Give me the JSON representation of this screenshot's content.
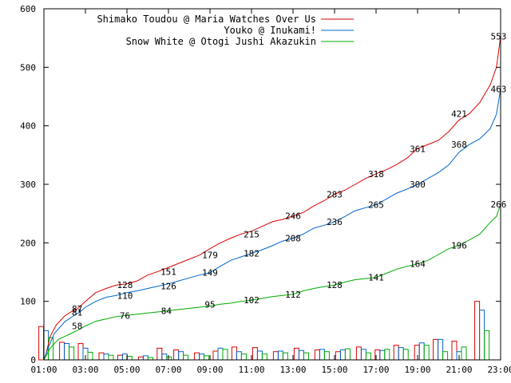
{
  "chart_data": {
    "type": "line",
    "title": "",
    "xlabel": "",
    "ylabel": "",
    "xlim": [
      1,
      23
    ],
    "ylim": [
      0,
      600
    ],
    "grid": false,
    "legend_position": "top-right",
    "x_ticks": [
      "01:00",
      "03:00",
      "05:00",
      "07:00",
      "09:00",
      "11:00",
      "13:00",
      "15:00",
      "17:00",
      "19:00",
      "21:00",
      "23:00"
    ],
    "y_ticks": [
      "0",
      "100",
      "200",
      "300",
      "400",
      "500",
      "600"
    ],
    "series": [
      {
        "name": "Shimako Toudou @ Maria Watches Over Us",
        "color": "#dd0000",
        "x": [
          1.0,
          1.1,
          1.3,
          1.6,
          2.0,
          2.3,
          2.6,
          3.0,
          3.5,
          4.0,
          4.5,
          5.0,
          5.5,
          6.0,
          6.5,
          7.0,
          7.5,
          8.0,
          8.5,
          9.0,
          9.5,
          10.0,
          10.5,
          11.0,
          11.5,
          12.0,
          12.5,
          13.0,
          13.5,
          14.0,
          14.5,
          15.0,
          15.5,
          16.0,
          16.5,
          17.0,
          17.5,
          18.0,
          18.5,
          19.0,
          19.5,
          20.0,
          20.5,
          21.0,
          21.5,
          22.0,
          22.5,
          22.8,
          23.0
        ],
        "y": [
          0,
          10,
          40,
          60,
          75,
          82,
          87,
          100,
          115,
          122,
          128,
          130,
          135,
          145,
          151,
          158,
          165,
          172,
          179,
          190,
          200,
          208,
          215,
          220,
          228,
          236,
          240,
          246,
          252,
          263,
          272,
          283,
          290,
          300,
          310,
          318,
          325,
          334,
          345,
          361,
          368,
          375,
          390,
          410,
          421,
          440,
          470,
          500,
          553
        ],
        "labels": [
          [
            2.6,
            87
          ],
          [
            4.9,
            128
          ],
          [
            7.0,
            151
          ],
          [
            9.0,
            179
          ],
          [
            11.0,
            215
          ],
          [
            13.0,
            246
          ],
          [
            15.0,
            283
          ],
          [
            17.0,
            318
          ],
          [
            19.0,
            361
          ],
          [
            21.0,
            421
          ],
          [
            22.9,
            553
          ]
        ]
      },
      {
        "name": "Youko @ Inukami!",
        "color": "#0066cc",
        "x": [
          1.0,
          1.2,
          1.5,
          2.0,
          2.5,
          2.7,
          3.0,
          3.5,
          4.0,
          4.5,
          5.0,
          5.5,
          6.0,
          6.5,
          7.0,
          7.5,
          8.0,
          8.5,
          9.0,
          9.5,
          10.0,
          10.5,
          11.0,
          11.5,
          12.0,
          12.5,
          13.0,
          13.5,
          14.0,
          14.5,
          15.0,
          15.5,
          16.0,
          16.5,
          17.0,
          17.5,
          18.0,
          18.5,
          19.0,
          19.5,
          20.0,
          20.5,
          21.0,
          21.5,
          22.0,
          22.5,
          22.8,
          23.0
        ],
        "y": [
          0,
          20,
          45,
          65,
          77,
          81,
          90,
          100,
          107,
          110,
          115,
          118,
          122,
          126,
          130,
          135,
          140,
          145,
          149,
          160,
          170,
          176,
          182,
          188,
          195,
          203,
          208,
          215,
          225,
          230,
          236,
          245,
          255,
          260,
          265,
          275,
          285,
          292,
          300,
          310,
          320,
          333,
          355,
          368,
          378,
          395,
          420,
          463
        ],
        "labels": [
          [
            2.6,
            81
          ],
          [
            4.9,
            110
          ],
          [
            7.0,
            126
          ],
          [
            9.0,
            149
          ],
          [
            11.0,
            182
          ],
          [
            13.0,
            208
          ],
          [
            15.0,
            236
          ],
          [
            17.0,
            265
          ],
          [
            19.0,
            300
          ],
          [
            21.0,
            368
          ],
          [
            22.9,
            463
          ]
        ]
      },
      {
        "name": "Snow White @ Otogi Jushi Akazukin",
        "color": "#00aa00",
        "x": [
          1.0,
          1.3,
          1.7,
          2.0,
          2.3,
          2.7,
          3.0,
          3.5,
          4.0,
          4.5,
          5.0,
          5.5,
          6.0,
          6.5,
          7.0,
          7.5,
          8.0,
          8.5,
          9.0,
          9.5,
          10.0,
          10.5,
          11.0,
          11.5,
          12.0,
          12.5,
          13.0,
          13.5,
          14.0,
          14.5,
          15.0,
          15.5,
          16.0,
          16.5,
          17.0,
          17.5,
          18.0,
          18.5,
          19.0,
          19.5,
          20.0,
          20.5,
          21.0,
          21.5,
          22.0,
          22.5,
          22.8,
          23.0
        ],
        "y": [
          0,
          20,
          35,
          40,
          45,
          52,
          58,
          66,
          70,
          74,
          76,
          78,
          80,
          82,
          84,
          86,
          88,
          90,
          92,
          95,
          97,
          100,
          102,
          105,
          108,
          110,
          112,
          118,
          122,
          125,
          128,
          133,
          137,
          139,
          141,
          148,
          155,
          160,
          164,
          170,
          180,
          190,
          196,
          205,
          215,
          235,
          245,
          266
        ],
        "labels": [
          [
            2.6,
            58
          ],
          [
            4.9,
            76
          ],
          [
            6.9,
            84
          ],
          [
            9.0,
            95
          ],
          [
            11.0,
            102
          ],
          [
            13.0,
            112
          ],
          [
            15.0,
            128
          ],
          [
            17.0,
            141
          ],
          [
            19.0,
            164
          ],
          [
            21.0,
            196
          ],
          [
            22.9,
            266
          ]
        ]
      }
    ],
    "bars": [
      {
        "x": 1.1,
        "values": [
          57,
          50,
          38
        ]
      },
      {
        "x": 2.1,
        "values": [
          30,
          28,
          22
        ]
      },
      {
        "x": 3.0,
        "values": [
          28,
          20,
          13
        ]
      },
      {
        "x": 4.0,
        "values": [
          12,
          10,
          8
        ]
      },
      {
        "x": 4.9,
        "values": [
          8,
          10,
          6
        ]
      },
      {
        "x": 5.9,
        "values": [
          5,
          7,
          4
        ]
      },
      {
        "x": 6.8,
        "values": [
          20,
          10,
          5
        ]
      },
      {
        "x": 7.6,
        "values": [
          17,
          14,
          8
        ]
      },
      {
        "x": 8.6,
        "values": [
          12,
          10,
          7
        ]
      },
      {
        "x": 9.5,
        "values": [
          15,
          20,
          18
        ]
      },
      {
        "x": 10.4,
        "values": [
          22,
          14,
          10
        ]
      },
      {
        "x": 11.4,
        "values": [
          21,
          15,
          10
        ]
      },
      {
        "x": 12.4,
        "values": [
          14,
          15,
          12
        ]
      },
      {
        "x": 13.4,
        "values": [
          20,
          16,
          12
        ]
      },
      {
        "x": 14.4,
        "values": [
          17,
          18,
          14
        ]
      },
      {
        "x": 15.4,
        "values": [
          14,
          17,
          19
        ]
      },
      {
        "x": 16.4,
        "values": [
          22,
          18,
          12
        ]
      },
      {
        "x": 17.3,
        "values": [
          17,
          16,
          18
        ]
      },
      {
        "x": 18.2,
        "values": [
          25,
          21,
          18
        ]
      },
      {
        "x": 19.2,
        "values": [
          25,
          29,
          25
        ]
      },
      {
        "x": 20.1,
        "values": [
          35,
          35,
          14
        ]
      },
      {
        "x": 21.0,
        "values": [
          32,
          14,
          22
        ]
      },
      {
        "x": 22.1,
        "values": [
          100,
          85,
          50
        ]
      }
    ]
  }
}
